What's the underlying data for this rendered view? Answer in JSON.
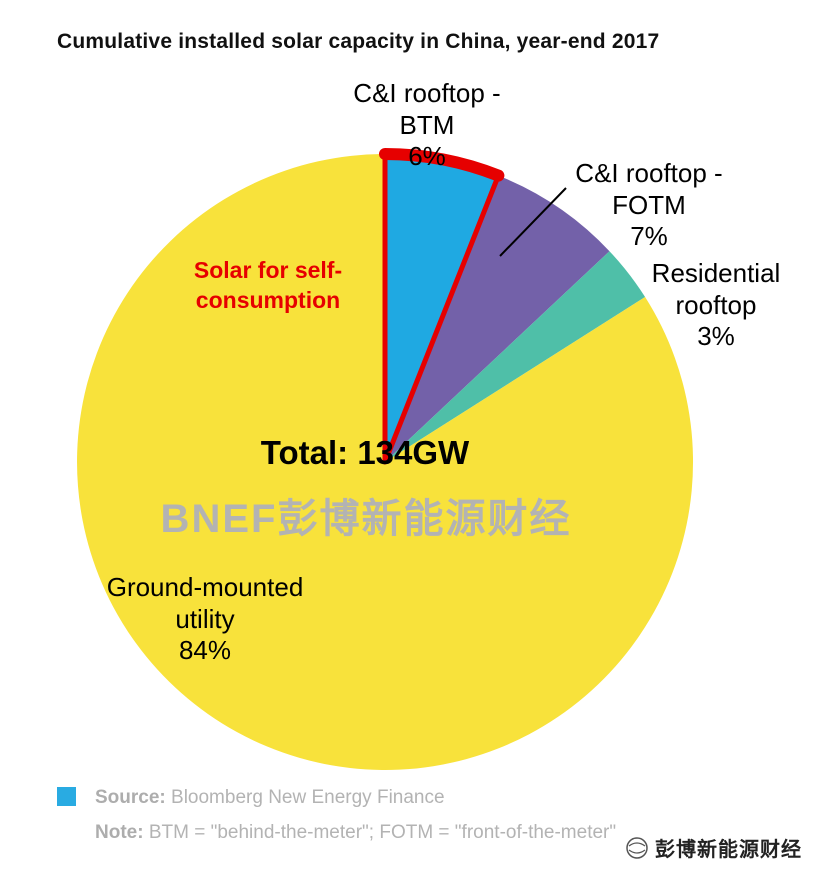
{
  "title": "Cumulative installed solar capacity in China, year-end 2017",
  "chart_data": {
    "type": "pie",
    "title": "Cumulative installed solar capacity in China, year-end 2017",
    "start_angle_deg": 0,
    "direction": "clockwise",
    "total_value": "134GW",
    "center_label": "Total: 134GW",
    "slices": [
      {
        "label": "C&I rooftop - BTM",
        "pct": 6,
        "color": "#1FA9E2",
        "outlined": true
      },
      {
        "label": "C&I rooftop - FOTM",
        "pct": 7,
        "color": "#7361A9",
        "outlined": false
      },
      {
        "label": "Residential rooftop",
        "pct": 3,
        "color": "#4FBFA8",
        "outlined": false
      },
      {
        "label": "Ground-mounted utility",
        "pct": 84,
        "color": "#F8E23B",
        "outlined": false
      }
    ],
    "annotation": {
      "text": "Solar for self-consumption",
      "color": "#E60000",
      "applies_to": "C&I rooftop - BTM"
    },
    "legend_position": "none"
  },
  "pie_labels": {
    "btm": [
      "C&I rooftop -",
      "BTM",
      "6%"
    ],
    "fotm": [
      "C&I rooftop -",
      "FOTM",
      "7%"
    ],
    "residential": [
      "Residential",
      "rooftop",
      "3%"
    ],
    "ground": [
      "Ground-mounted",
      "utility",
      "84%"
    ],
    "self": [
      "Solar for self-",
      "consumption"
    ]
  },
  "center": {
    "total": "Total: 134GW",
    "watermark": "BNEF彭博新能源财经"
  },
  "footer": {
    "legend_color": "#29ABE2",
    "source_label": "Source:",
    "source_text": " Bloomberg New Energy Finance",
    "note_label": "Note:",
    "note_text": " BTM = \"behind-the-meter\"; FOTM = \"front-of-the-meter\""
  },
  "bottom_right_watermark": "彭博新能源财经"
}
